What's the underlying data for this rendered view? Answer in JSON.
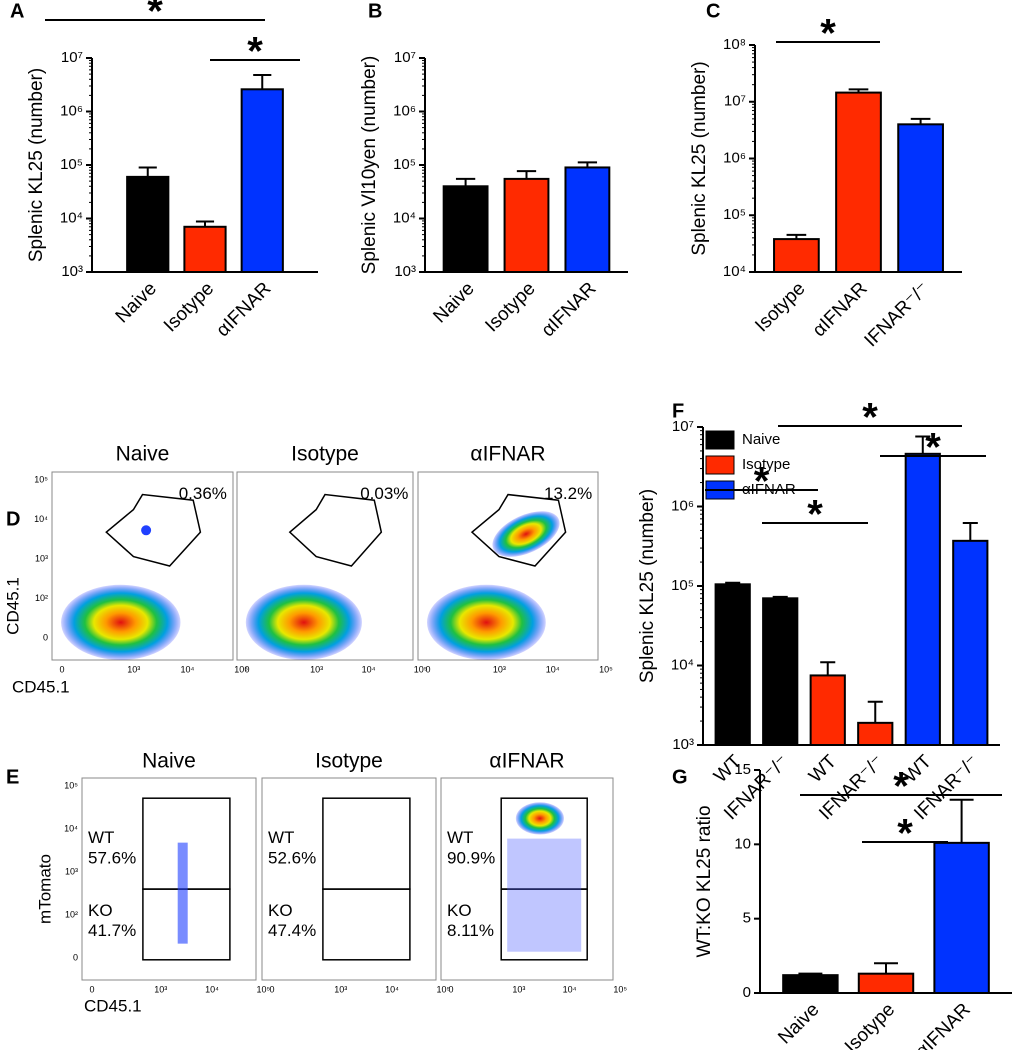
{
  "chart_data": [
    {
      "type": "bar",
      "panel": "A",
      "ylabel": "Splenic KL25 (number)",
      "log": true,
      "categories": [
        "Naive",
        "Isotype",
        "αIFNAR"
      ],
      "values": [
        60000,
        7000,
        2600000
      ],
      "errors": [
        30000,
        1800,
        2200000
      ],
      "colors": [
        "#000000",
        "#ff2a00",
        "#0033ff"
      ],
      "ylim": [
        1000,
        10000000
      ],
      "yticks": [
        {
          "value": 1000,
          "label": "10³"
        },
        {
          "value": 10000,
          "label": "10⁴"
        },
        {
          "value": 100000,
          "label": "10⁵"
        },
        {
          "value": 1000000,
          "label": "10⁶"
        },
        {
          "value": 10000000,
          "label": "10⁷"
        }
      ],
      "annotations": [
        "*",
        "*"
      ]
    },
    {
      "type": "bar",
      "panel": "B",
      "ylabel": "Splenic Vl10yen (number)",
      "log": true,
      "categories": [
        "Naive",
        "Isotype",
        "αIFNAR"
      ],
      "values": [
        40000,
        55000,
        90000
      ],
      "errors": [
        15000,
        22000,
        22000
      ],
      "colors": [
        "#000000",
        "#ff2a00",
        "#0033ff"
      ],
      "ylim": [
        1000,
        10000000
      ],
      "yticks": [
        {
          "value": 1000,
          "label": "10³"
        },
        {
          "value": 10000,
          "label": "10⁴"
        },
        {
          "value": 100000,
          "label": "10⁵"
        },
        {
          "value": 1000000,
          "label": "10⁶"
        },
        {
          "value": 10000000,
          "label": "10⁷"
        }
      ],
      "annotations": []
    },
    {
      "type": "bar",
      "panel": "C",
      "ylabel": "Splenic KL25 (number)",
      "log": true,
      "categories": [
        "Isotype",
        "αIFNAR",
        "IFNAR⁻/⁻"
      ],
      "values": [
        38000,
        14500000,
        4000000
      ],
      "errors": [
        7000,
        2000000,
        1000000
      ],
      "colors": [
        "#ff2a00",
        "#ff2a00",
        "#0033ff"
      ],
      "ylim": [
        10000,
        100000000
      ],
      "yticks": [
        {
          "value": 10000,
          "label": "10⁴"
        },
        {
          "value": 100000,
          "label": "10⁵"
        },
        {
          "value": 1000000,
          "label": "10⁶"
        },
        {
          "value": 10000000,
          "label": "10⁷"
        },
        {
          "value": 100000000,
          "label": "10⁸"
        }
      ],
      "annotations": [
        "*"
      ]
    },
    {
      "type": "groupbar",
      "panel": "F",
      "ylabel": "Splenic KL25 (number)",
      "log": true,
      "categories": [
        "WT",
        "IFNAR⁻/⁻",
        "WT",
        "IFNAR⁻/⁻",
        "WT",
        "IFNAR⁻/⁻"
      ],
      "series": [
        {
          "name": "Naive",
          "color": "#000000",
          "values": [
            105000,
            70000,
            null,
            null,
            null,
            null
          ],
          "errors": [
            5000,
            3000,
            null,
            null,
            null,
            null
          ]
        },
        {
          "name": "Isotype",
          "color": "#ff2a00",
          "values": [
            null,
            null,
            7500,
            1900,
            null,
            null
          ],
          "errors": [
            null,
            null,
            3500,
            1600,
            null,
            null
          ]
        },
        {
          "name": "αIFNAR",
          "color": "#0033ff",
          "values": [
            null,
            null,
            null,
            null,
            4600000,
            370000
          ],
          "errors": [
            null,
            null,
            null,
            null,
            3000000,
            250000
          ]
        }
      ],
      "ylim": [
        1000,
        10000000
      ],
      "yticks": [
        {
          "value": 1000,
          "label": "10³"
        },
        {
          "value": 10000,
          "label": "10⁴"
        },
        {
          "value": 100000,
          "label": "10⁵"
        },
        {
          "value": 1000000,
          "label": "10⁶"
        },
        {
          "value": 10000000,
          "label": "10⁷"
        }
      ],
      "annotations": [
        "*",
        "*",
        "*",
        "*"
      ]
    },
    {
      "type": "bar",
      "panel": "G",
      "ylabel": "WT:KO KL25 ratio",
      "log": false,
      "categories": [
        "Naive",
        "Isotype",
        "αIFNAR"
      ],
      "values": [
        1.2,
        1.3,
        10.1
      ],
      "errors": [
        0.1,
        0.7,
        2.9
      ],
      "colors": [
        "#000000",
        "#ff2a00",
        "#0033ff"
      ],
      "ylim": [
        0,
        15
      ],
      "yticks": [
        0,
        5,
        10,
        15
      ],
      "annotations": [
        "*",
        "*"
      ]
    }
  ],
  "flow": [
    {
      "panel": "D",
      "xlabel": "CD45.1",
      "ylabel": "CD45.1",
      "xticks": [
        "0",
        "10³",
        "10⁴",
        "10⁵"
      ],
      "yticks": [
        "0",
        "10²",
        "10³",
        "10⁴",
        "10⁵"
      ],
      "plots": [
        {
          "title": "Naive",
          "gates": [
            "0.36%"
          ]
        },
        {
          "title": "Isotype",
          "gates": [
            "0.03%"
          ]
        },
        {
          "title": "αIFNAR",
          "gates": [
            "13.2%"
          ]
        }
      ]
    },
    {
      "panel": "E",
      "xlabel": "CD45.1",
      "ylabel": "mTomato",
      "xticks": [
        "0",
        "10³",
        "10⁴",
        "10⁵"
      ],
      "yticks": [
        "0",
        "10²",
        "10³",
        "10⁴",
        "10⁵"
      ],
      "plots": [
        {
          "title": "Naive",
          "gates": [
            "WT",
            "57.6%",
            "KO",
            "41.7%"
          ]
        },
        {
          "title": "Isotype",
          "gates": [
            "WT",
            "52.6%",
            "KO",
            "47.4%"
          ]
        },
        {
          "title": "αIFNAR",
          "gates": [
            "WT",
            "90.9%",
            "KO",
            "8.11%"
          ]
        }
      ]
    }
  ]
}
